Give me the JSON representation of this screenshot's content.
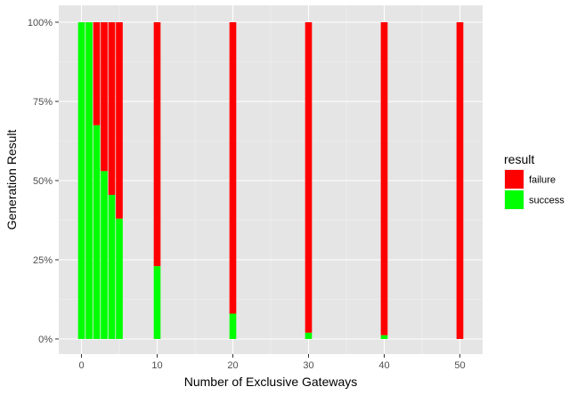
{
  "chart_data": {
    "type": "bar",
    "stacking": "percent",
    "x": [
      0,
      1,
      2,
      3,
      4,
      5,
      10,
      20,
      30,
      40,
      50
    ],
    "series": [
      {
        "name": "failure",
        "color": "#FF0000",
        "values": [
          0,
          0,
          32.5,
          47,
          54.5,
          62,
          77,
          92,
          98,
          98.8,
          100
        ]
      },
      {
        "name": "success",
        "color": "#00FF00",
        "values": [
          100,
          100,
          67.5,
          53,
          45.5,
          38,
          23,
          8,
          2,
          1.2,
          0
        ]
      }
    ],
    "xlabel": "Number of Exclusive Gateways",
    "ylabel": "Generation Result",
    "xlim": [
      -3,
      53
    ],
    "ylim": [
      0,
      100
    ],
    "xticks": [
      0,
      10,
      20,
      30,
      40,
      50
    ],
    "yticks": [
      0,
      25,
      50,
      75,
      100
    ],
    "ytick_labels": [
      "0%",
      "25%",
      "50%",
      "75%",
      "100%"
    ],
    "legend": {
      "title": "result",
      "position": "right",
      "entries": [
        "failure",
        "success"
      ]
    },
    "panel_background": "#E5E5E5",
    "grid": true
  }
}
